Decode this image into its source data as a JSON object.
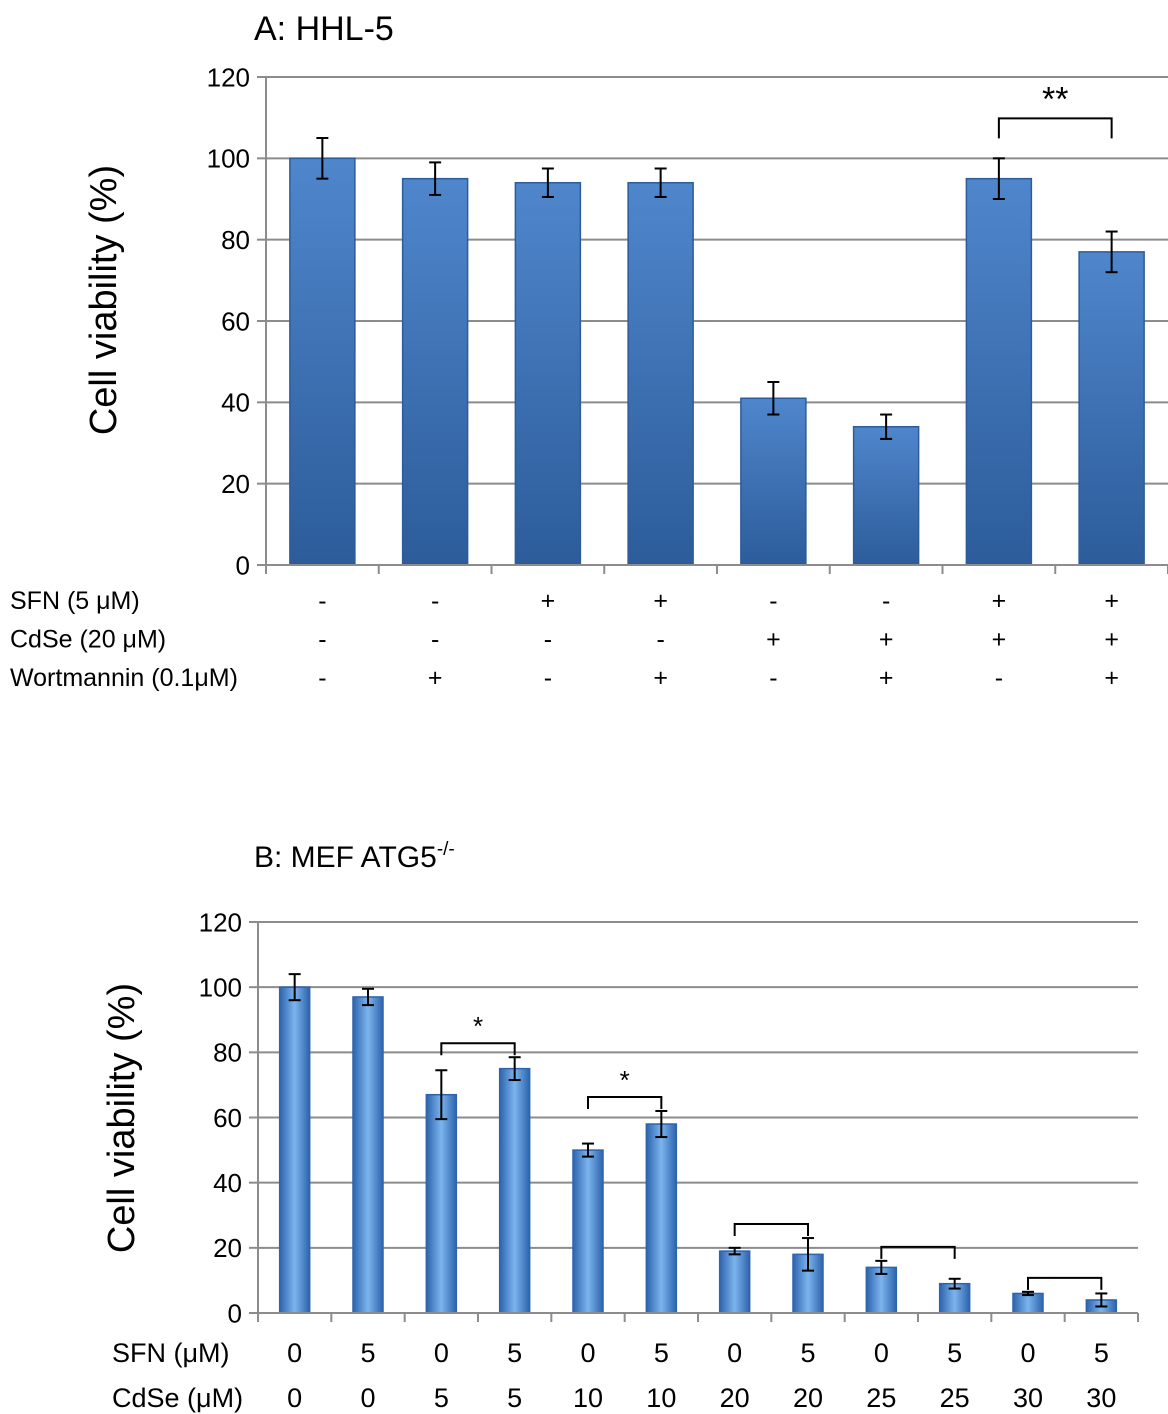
{
  "chart_data": [
    {
      "type": "bar",
      "title": "A: HHL-5",
      "ylabel": "Cell viability (%)",
      "ylim": [
        0,
        120
      ],
      "yticks": [
        0,
        20,
        40,
        60,
        80,
        100,
        120
      ],
      "grid": true,
      "bar_color": "#3d72b8",
      "values": [
        100,
        95,
        94,
        94,
        41,
        34,
        95,
        77
      ],
      "errors": [
        5,
        4,
        3.5,
        3.5,
        4,
        3,
        5,
        5
      ],
      "conditions": [
        {
          "label": "SFN (5 μM)",
          "values": [
            "-",
            "-",
            "+",
            "+",
            "-",
            "-",
            "+",
            "+"
          ]
        },
        {
          "label": "CdSe (20 μM)",
          "values": [
            "-",
            "-",
            "-",
            "-",
            "+",
            "+",
            "+",
            "+"
          ]
        },
        {
          "label": "Wortmannin (0.1μM)",
          "values": [
            "-",
            "+",
            "-",
            "+",
            "-",
            "+",
            "-",
            "+"
          ]
        }
      ],
      "significance": [
        {
          "from": 6,
          "to": 7,
          "label": "**"
        }
      ]
    },
    {
      "type": "bar",
      "title_main": "B: MEF ATG5",
      "title_sup": "-/-",
      "ylabel": "Cell viability (%)",
      "ylim": [
        0,
        120
      ],
      "yticks": [
        0,
        20,
        40,
        60,
        80,
        100,
        120
      ],
      "grid": true,
      "bar_color": "#4a8fd6",
      "values": [
        100,
        97,
        67,
        75,
        50,
        58,
        19,
        18,
        14,
        9,
        6,
        4
      ],
      "errors": [
        4,
        2.5,
        7.5,
        3.5,
        2,
        4,
        1,
        5,
        2,
        1.5,
        0.5,
        2
      ],
      "conditions": [
        {
          "label": "SFN (μM)",
          "values": [
            "0",
            "5",
            "0",
            "5",
            "0",
            "5",
            "0",
            "5",
            "0",
            "5",
            "0",
            "5"
          ]
        },
        {
          "label": "CdSe (μM)",
          "values": [
            "0",
            "0",
            "5",
            "5",
            "10",
            "10",
            "20",
            "20",
            "25",
            "25",
            "30",
            "30"
          ]
        }
      ],
      "significance": [
        {
          "from": 2,
          "to": 3,
          "label": "*"
        },
        {
          "from": 4,
          "to": 5,
          "label": "*"
        },
        {
          "from": 6,
          "to": 7,
          "label": ""
        },
        {
          "from": 8,
          "to": 9,
          "label": ""
        },
        {
          "from": 10,
          "to": 11,
          "label": ""
        }
      ]
    }
  ]
}
